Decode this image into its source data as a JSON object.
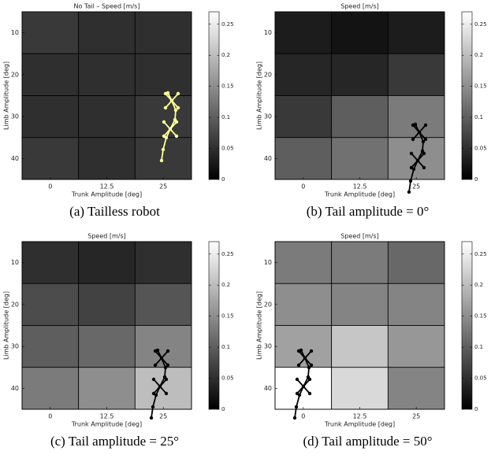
{
  "chart_data": [
    {
      "type": "heatmap",
      "title": "No Tail – Speed [m/s]",
      "caption": "(a) Tailless robot",
      "xlabel": "Trunk Amplitude [deg]",
      "ylabel": "Limb Amplitude [deg]",
      "x": [
        0,
        12.5,
        25
      ],
      "y": [
        10,
        20,
        30,
        40
      ],
      "xlim": [
        -6.25,
        31.25
      ],
      "ylim": [
        5,
        45
      ],
      "xticks": [
        0,
        12.5,
        25
      ],
      "yticks": [
        10,
        20,
        30,
        40
      ],
      "values": [
        [
          0.06,
          0.05,
          0.05
        ],
        [
          0.05,
          0.05,
          0.05
        ],
        [
          0.05,
          0.05,
          0.06
        ],
        [
          0.06,
          0.05,
          0.06
        ]
      ],
      "clim": [
        0,
        0.27
      ],
      "cticks": [
        0,
        0.05,
        0.1,
        0.15,
        0.2,
        0.25
      ],
      "colormap": "gray",
      "robot_color": "#ffff99"
    },
    {
      "type": "heatmap",
      "title": "Speed [m/s]",
      "caption": "(b) Tail amplitude = 0°",
      "xlabel": "Trunk Amplitude [deg]",
      "ylabel": "Limb Amplitude [deg]",
      "x": [
        0,
        12.5,
        25
      ],
      "y": [
        10,
        20,
        30,
        40
      ],
      "xlim": [
        -6.25,
        31.25
      ],
      "ylim": [
        5,
        45
      ],
      "xticks": [
        0,
        12.5,
        25
      ],
      "yticks": [
        10,
        20,
        30,
        40
      ],
      "values": [
        [
          0.03,
          0.02,
          0.03
        ],
        [
          0.04,
          0.04,
          0.06
        ],
        [
          0.06,
          0.1,
          0.13
        ],
        [
          0.1,
          0.12,
          0.15
        ]
      ],
      "clim": [
        0,
        0.27
      ],
      "cticks": [
        0,
        0.05,
        0.1,
        0.15,
        0.2,
        0.25
      ],
      "colormap": "gray",
      "robot_color": "#000000"
    },
    {
      "type": "heatmap",
      "title": "Speed [m/s]",
      "caption": "(c) Tail amplitude = 25°",
      "xlabel": "Trunk Amplitude [deg]",
      "ylabel": "Limb Amplitude [deg]",
      "x": [
        0,
        12.5,
        25
      ],
      "y": [
        10,
        20,
        30,
        40
      ],
      "xlim": [
        -6.25,
        31.25
      ],
      "ylim": [
        5,
        45
      ],
      "xticks": [
        0,
        12.5,
        25
      ],
      "yticks": [
        10,
        20,
        30,
        40
      ],
      "values": [
        [
          0.05,
          0.04,
          0.05
        ],
        [
          0.08,
          0.07,
          0.09
        ],
        [
          0.1,
          0.11,
          0.14
        ],
        [
          0.13,
          0.15,
          0.2
        ]
      ],
      "clim": [
        0,
        0.27
      ],
      "cticks": [
        0,
        0.05,
        0.1,
        0.15,
        0.2,
        0.25
      ],
      "colormap": "gray",
      "robot_color": "#000000"
    },
    {
      "type": "heatmap",
      "title": "Speed [m/s]",
      "caption": "(d) Tail amplitude = 50°",
      "xlabel": "Trunk Amplitude [deg]",
      "ylabel": "Limb Amplitude [deg]",
      "x": [
        0,
        12.5,
        25
      ],
      "y": [
        10,
        20,
        30,
        40
      ],
      "xlim": [
        -6.25,
        31.25
      ],
      "ylim": [
        5,
        45
      ],
      "xticks": [
        0,
        12.5,
        25
      ],
      "yticks": [
        10,
        20,
        30,
        40
      ],
      "values": [
        [
          0.13,
          0.13,
          0.11
        ],
        [
          0.15,
          0.14,
          0.14
        ],
        [
          0.17,
          0.21,
          0.16
        ],
        [
          0.27,
          0.23,
          0.14
        ]
      ],
      "clim": [
        0,
        0.27
      ],
      "cticks": [
        0,
        0.05,
        0.1,
        0.15,
        0.2,
        0.25
      ],
      "colormap": "gray",
      "robot_color": "#000000"
    }
  ]
}
